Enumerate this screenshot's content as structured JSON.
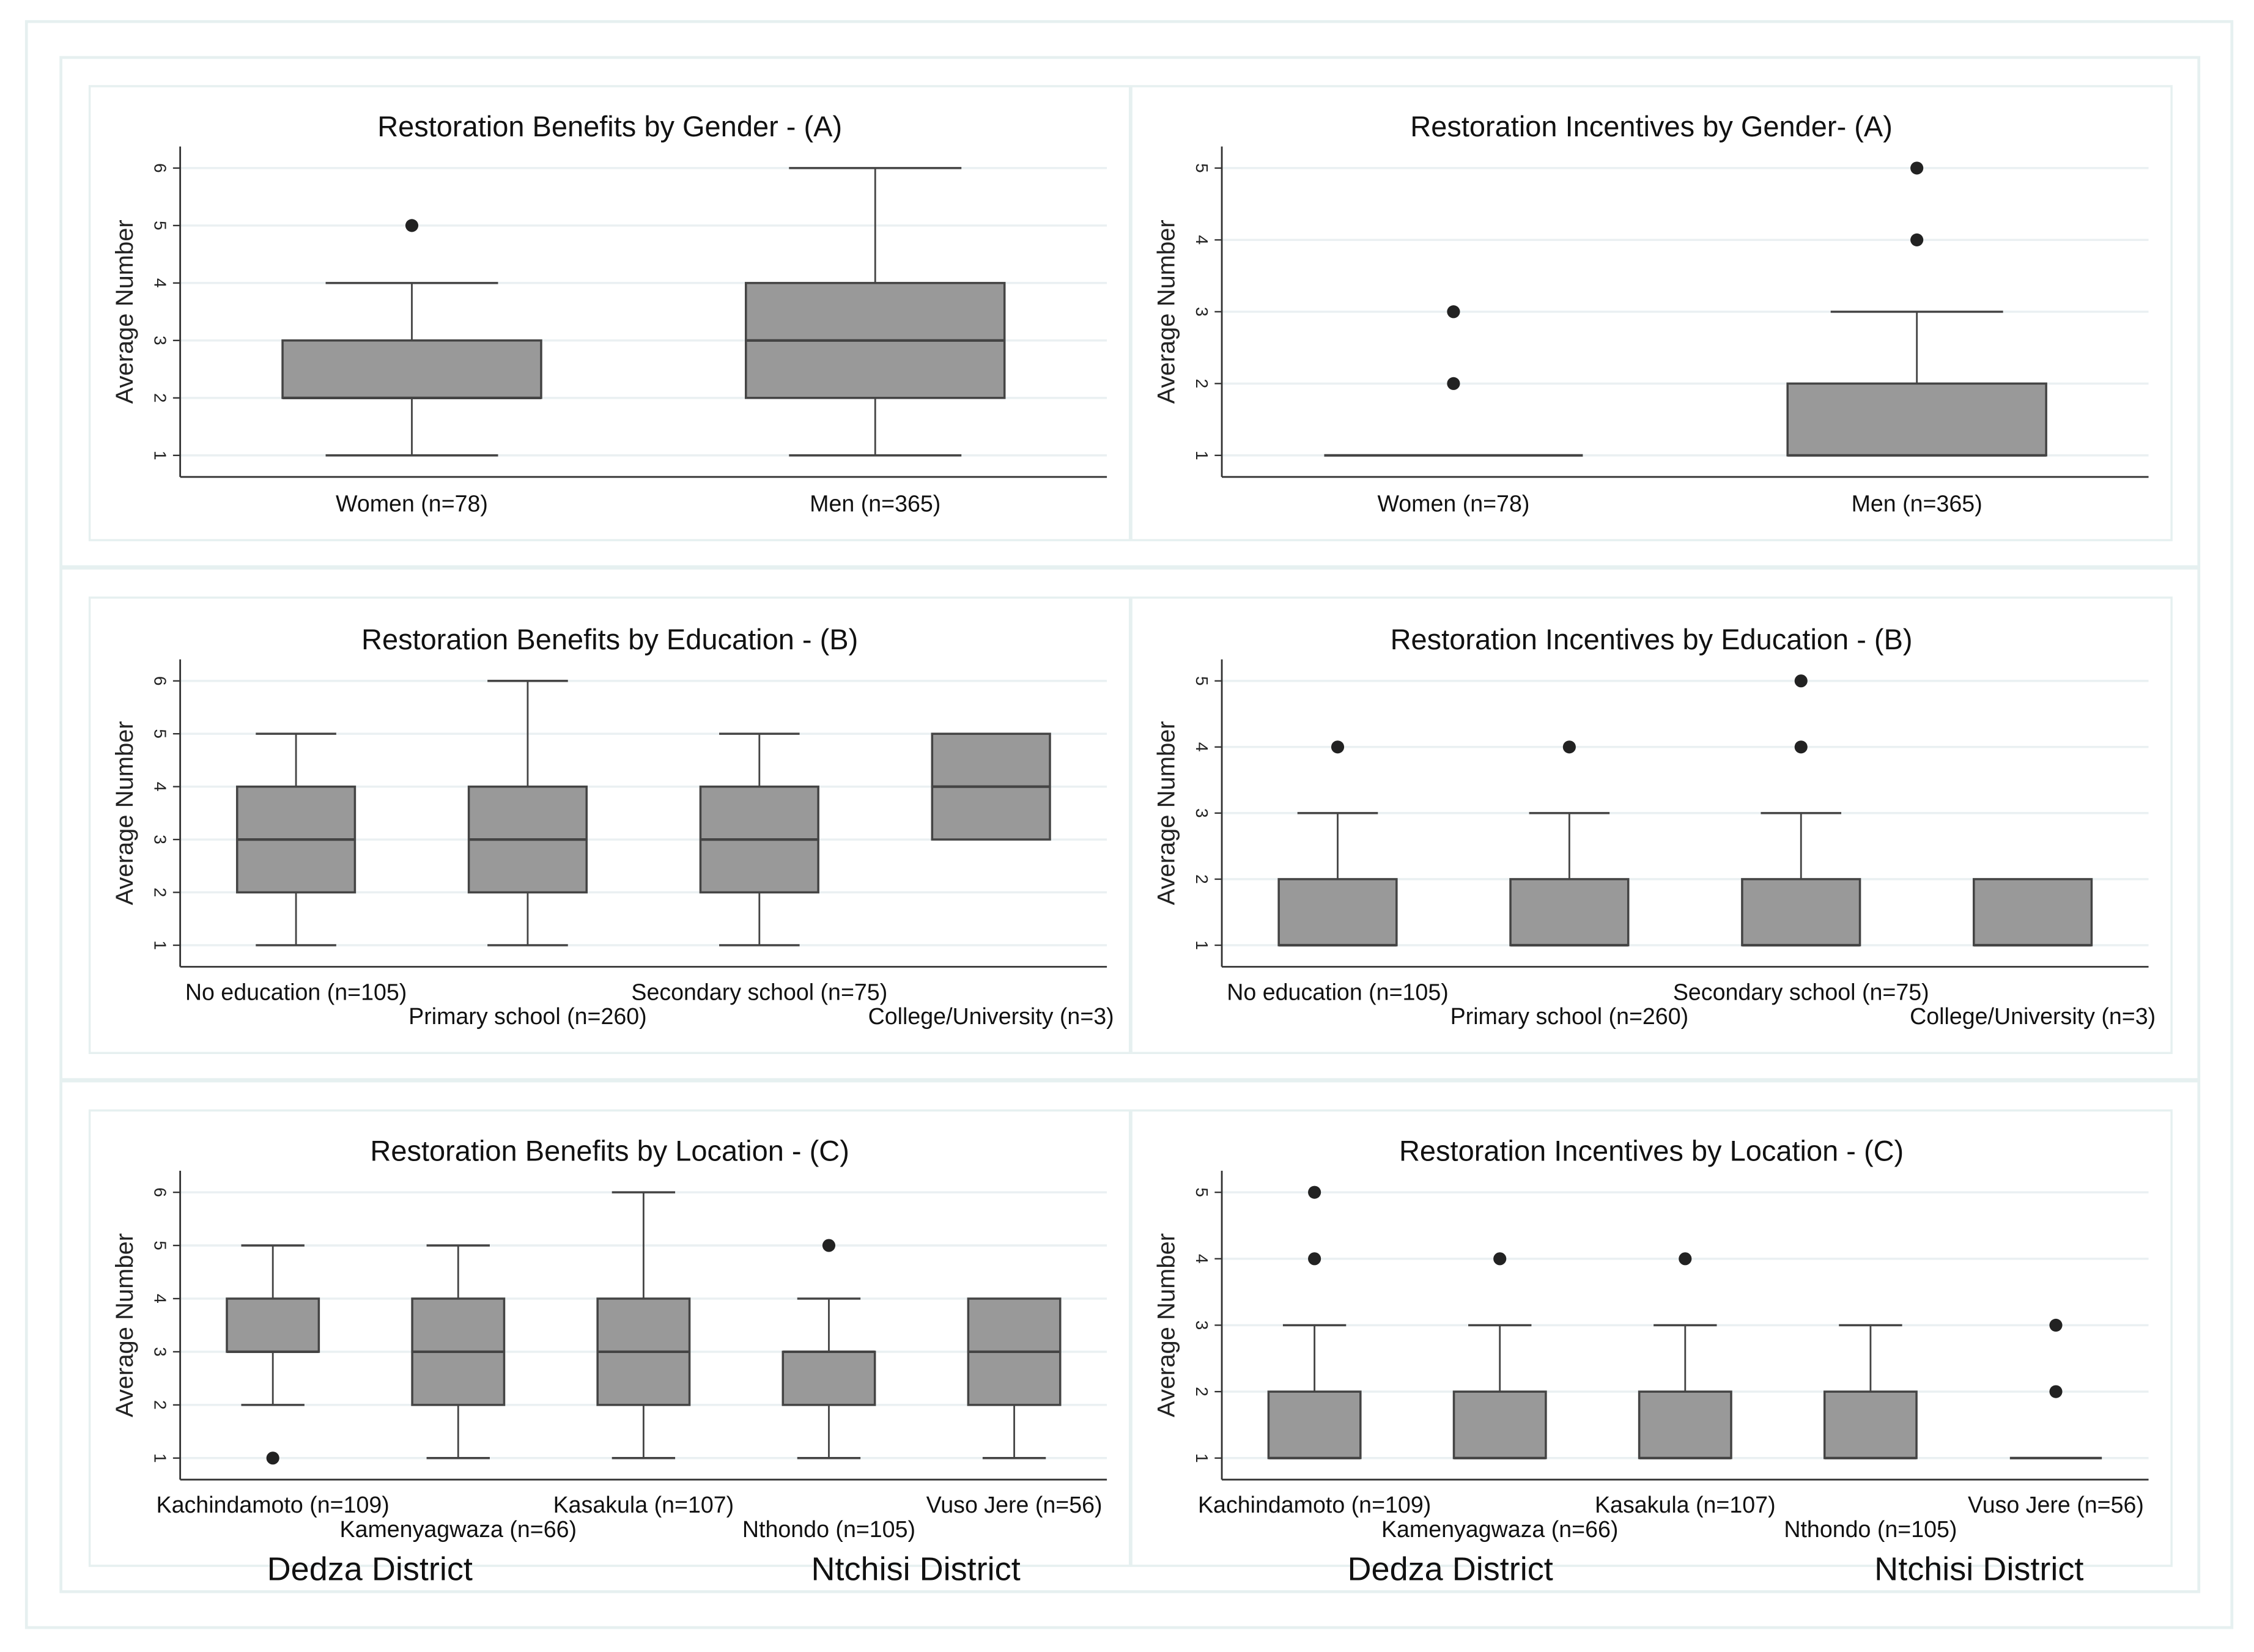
{
  "colors": {
    "box": "#999999",
    "edge": "#444444",
    "grid": "#eaf0f2",
    "frame": "#e6f0f0",
    "point": "#222222"
  },
  "chart_data": [
    {
      "type": "box",
      "title": "Restoration Benefits by Gender - (A)",
      "ylabel": "Average Number",
      "ylim": [
        1,
        6
      ],
      "yticks": [
        1,
        2,
        3,
        4,
        5,
        6
      ],
      "grid": true,
      "groups": [
        {
          "label": "Women (n=78)",
          "min": 1,
          "q1": 2,
          "median": 2,
          "q3": 3,
          "max": 4,
          "outliers": [
            5
          ]
        },
        {
          "label": "Men (n=365)",
          "min": 1,
          "q1": 2,
          "median": 3,
          "q3": 4,
          "max": 6,
          "outliers": []
        }
      ]
    },
    {
      "type": "box",
      "title": "Restoration Incentives by Gender- (A)",
      "ylabel": "Average Number",
      "ylim": [
        1,
        5
      ],
      "yticks": [
        1,
        2,
        3,
        4,
        5
      ],
      "grid": true,
      "groups": [
        {
          "label": "Women (n=78)",
          "min": 1,
          "q1": 1,
          "median": 1,
          "q3": 1,
          "max": 1,
          "outliers": [
            2,
            3
          ]
        },
        {
          "label": "Men (n=365)",
          "min": 1,
          "q1": 1,
          "median": 1,
          "q3": 2,
          "max": 3,
          "outliers": [
            4,
            5
          ]
        }
      ]
    },
    {
      "type": "box",
      "title": "Restoration Benefits by Education - (B)",
      "ylabel": "Average Number",
      "ylim": [
        1,
        6
      ],
      "yticks": [
        1,
        2,
        3,
        4,
        5,
        6
      ],
      "grid": true,
      "groups": [
        {
          "label": "No education (n=105)",
          "min": 1,
          "q1": 2,
          "median": 3,
          "q3": 4,
          "max": 5,
          "outliers": []
        },
        {
          "label": "Primary school (n=260)",
          "min": 1,
          "q1": 2,
          "median": 3,
          "q3": 4,
          "max": 6,
          "outliers": []
        },
        {
          "label": "Secondary school (n=75)",
          "min": 1,
          "q1": 2,
          "median": 3,
          "q3": 4,
          "max": 5,
          "outliers": []
        },
        {
          "label": "College/University (n=3)",
          "min": 3,
          "q1": 3,
          "median": 4,
          "q3": 5,
          "max": 5,
          "outliers": []
        }
      ]
    },
    {
      "type": "box",
      "title": "Restoration Incentives by Education - (B)",
      "ylabel": "Average Number",
      "ylim": [
        1,
        5
      ],
      "yticks": [
        1,
        2,
        3,
        4,
        5
      ],
      "grid": true,
      "groups": [
        {
          "label": "No education (n=105)",
          "min": 1,
          "q1": 1,
          "median": 1,
          "q3": 2,
          "max": 3,
          "outliers": [
            4
          ]
        },
        {
          "label": "Primary school (n=260)",
          "min": 1,
          "q1": 1,
          "median": 1,
          "q3": 2,
          "max": 3,
          "outliers": [
            4
          ]
        },
        {
          "label": "Secondary school (n=75)",
          "min": 1,
          "q1": 1,
          "median": 1,
          "q3": 2,
          "max": 3,
          "outliers": [
            4,
            5
          ]
        },
        {
          "label": "College/University (n=3)",
          "min": 1,
          "q1": 1,
          "median": 1,
          "q3": 2,
          "max": 2,
          "outliers": []
        }
      ]
    },
    {
      "type": "box",
      "title": "Restoration Benefits by Location - (C)",
      "ylabel": "Average Number",
      "ylim": [
        1,
        6
      ],
      "yticks": [
        1,
        2,
        3,
        4,
        5,
        6
      ],
      "grid": true,
      "districts": [
        "Dedza District",
        "Ntchisi District"
      ],
      "groups": [
        {
          "label": "Kachindamoto (n=109)",
          "min": 2,
          "q1": 3,
          "median": 3,
          "q3": 4,
          "max": 5,
          "outliers": [
            1
          ]
        },
        {
          "label": "Kamenyagwaza (n=66)",
          "min": 1,
          "q1": 2,
          "median": 3,
          "q3": 4,
          "max": 5,
          "outliers": []
        },
        {
          "label": "Kasakula (n=107)",
          "min": 1,
          "q1": 2,
          "median": 3,
          "q3": 4,
          "max": 6,
          "outliers": []
        },
        {
          "label": "Nthondo (n=105)",
          "min": 1,
          "q1": 2,
          "median": 3,
          "q3": 3,
          "max": 4,
          "outliers": [
            5
          ]
        },
        {
          "label": "Vuso Jere (n=56)",
          "min": 1,
          "q1": 2,
          "median": 3,
          "q3": 4,
          "max": 4,
          "outliers": []
        }
      ]
    },
    {
      "type": "box",
      "title": "Restoration Incentives by Location - (C)",
      "ylabel": "Average Number",
      "ylim": [
        1,
        5
      ],
      "yticks": [
        1,
        2,
        3,
        4,
        5
      ],
      "grid": true,
      "districts": [
        "Dedza District",
        "Ntchisi District"
      ],
      "groups": [
        {
          "label": "Kachindamoto (n=109)",
          "min": 1,
          "q1": 1,
          "median": 1,
          "q3": 2,
          "max": 3,
          "outliers": [
            4,
            5
          ]
        },
        {
          "label": "Kamenyagwaza (n=66)",
          "min": 1,
          "q1": 1,
          "median": 1,
          "q3": 2,
          "max": 3,
          "outliers": [
            4
          ]
        },
        {
          "label": "Kasakula (n=107)",
          "min": 1,
          "q1": 1,
          "median": 1,
          "q3": 2,
          "max": 3,
          "outliers": [
            4
          ]
        },
        {
          "label": "Nthondo (n=105)",
          "min": 1,
          "q1": 1,
          "median": 1,
          "q3": 2,
          "max": 3,
          "outliers": []
        },
        {
          "label": "Vuso Jere (n=56)",
          "min": 1,
          "q1": 1,
          "median": 1,
          "q3": 1,
          "max": 1,
          "outliers": [
            2,
            3
          ]
        }
      ]
    }
  ]
}
